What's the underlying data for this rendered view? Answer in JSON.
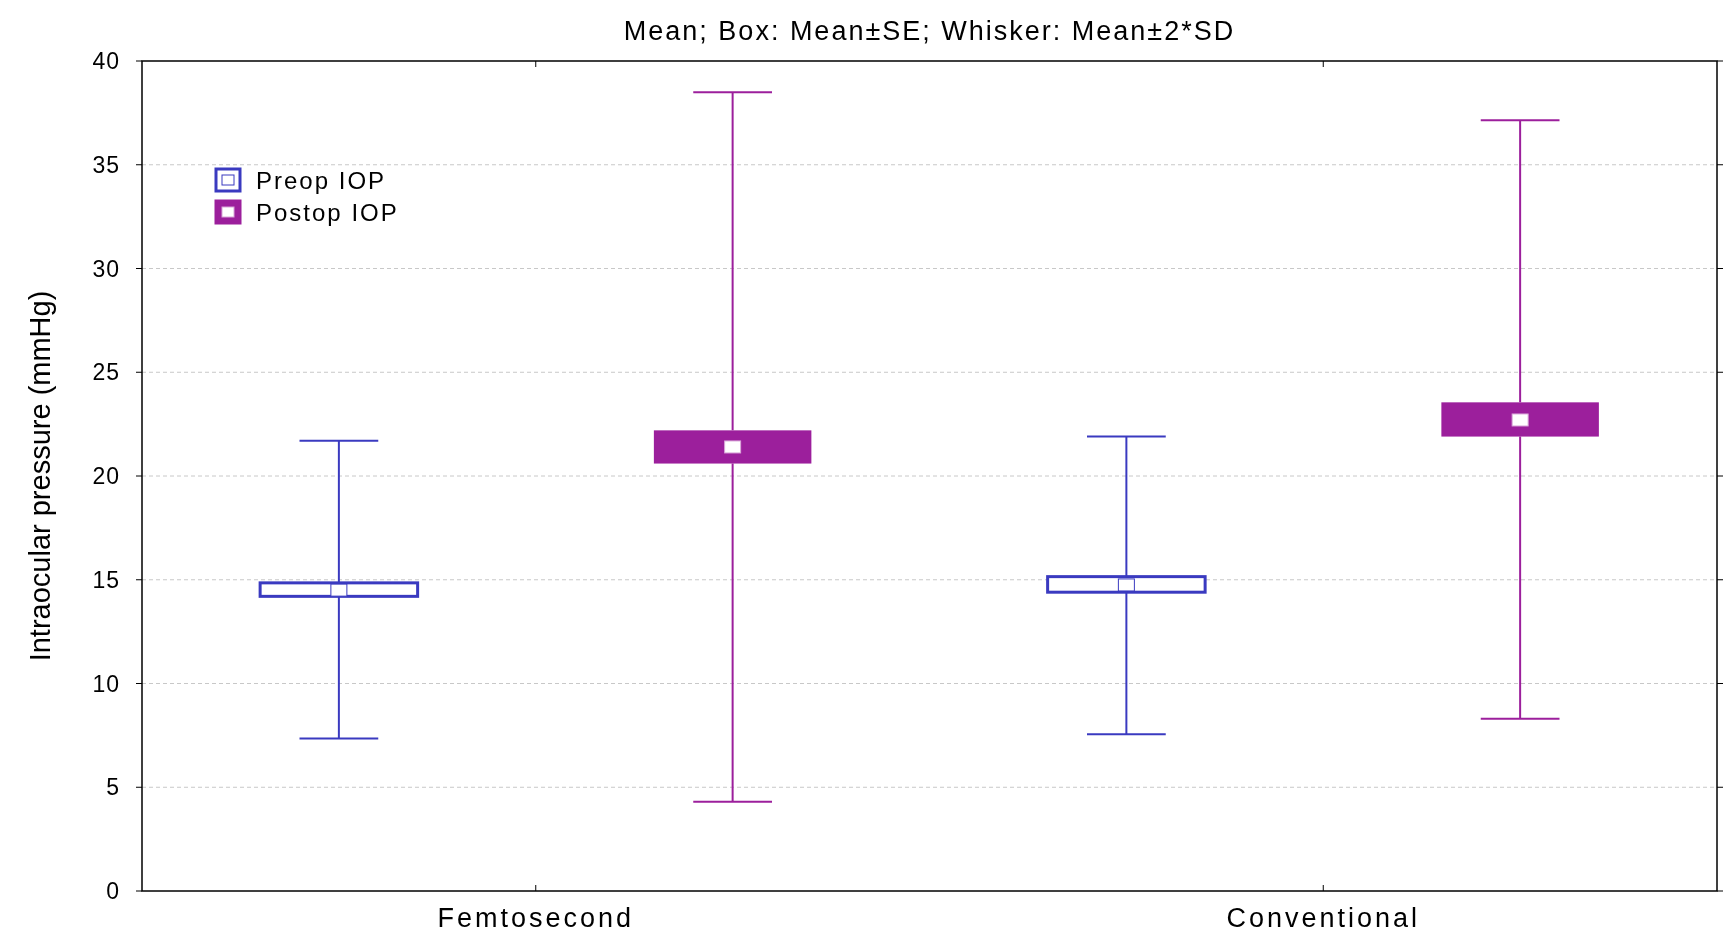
{
  "chart_data": {
    "type": "box",
    "title": "Mean; Box: Mean±SE; Whisker: Mean±2*SD",
    "ylabel": "Intraocular pressure (mmHg)",
    "categories": [
      "Femtosecond",
      "Conventional"
    ],
    "series": [
      {
        "name": "Preop IOP",
        "color": "#3a3ac0",
        "boxes": [
          {
            "low": 7.35,
            "q1": 14.2,
            "median": 14.5,
            "q3": 14.85,
            "high": 21.7
          },
          {
            "low": 7.55,
            "q1": 14.4,
            "median": 14.75,
            "q3": 15.15,
            "high": 21.9
          }
        ]
      },
      {
        "name": "Postop IOP",
        "color": "#9c1f9c",
        "boxes": [
          {
            "low": 4.3,
            "q1": 20.6,
            "median": 21.4,
            "q3": 22.2,
            "high": 38.5
          },
          {
            "low": 8.3,
            "q1": 21.9,
            "median": 22.7,
            "q3": 23.55,
            "high": 37.15
          }
        ]
      }
    ],
    "ylim": [
      0,
      40
    ],
    "yticks": [
      0,
      5,
      10,
      15,
      20,
      25,
      30,
      35,
      40
    ],
    "grid": "y",
    "legend": "top left"
  }
}
